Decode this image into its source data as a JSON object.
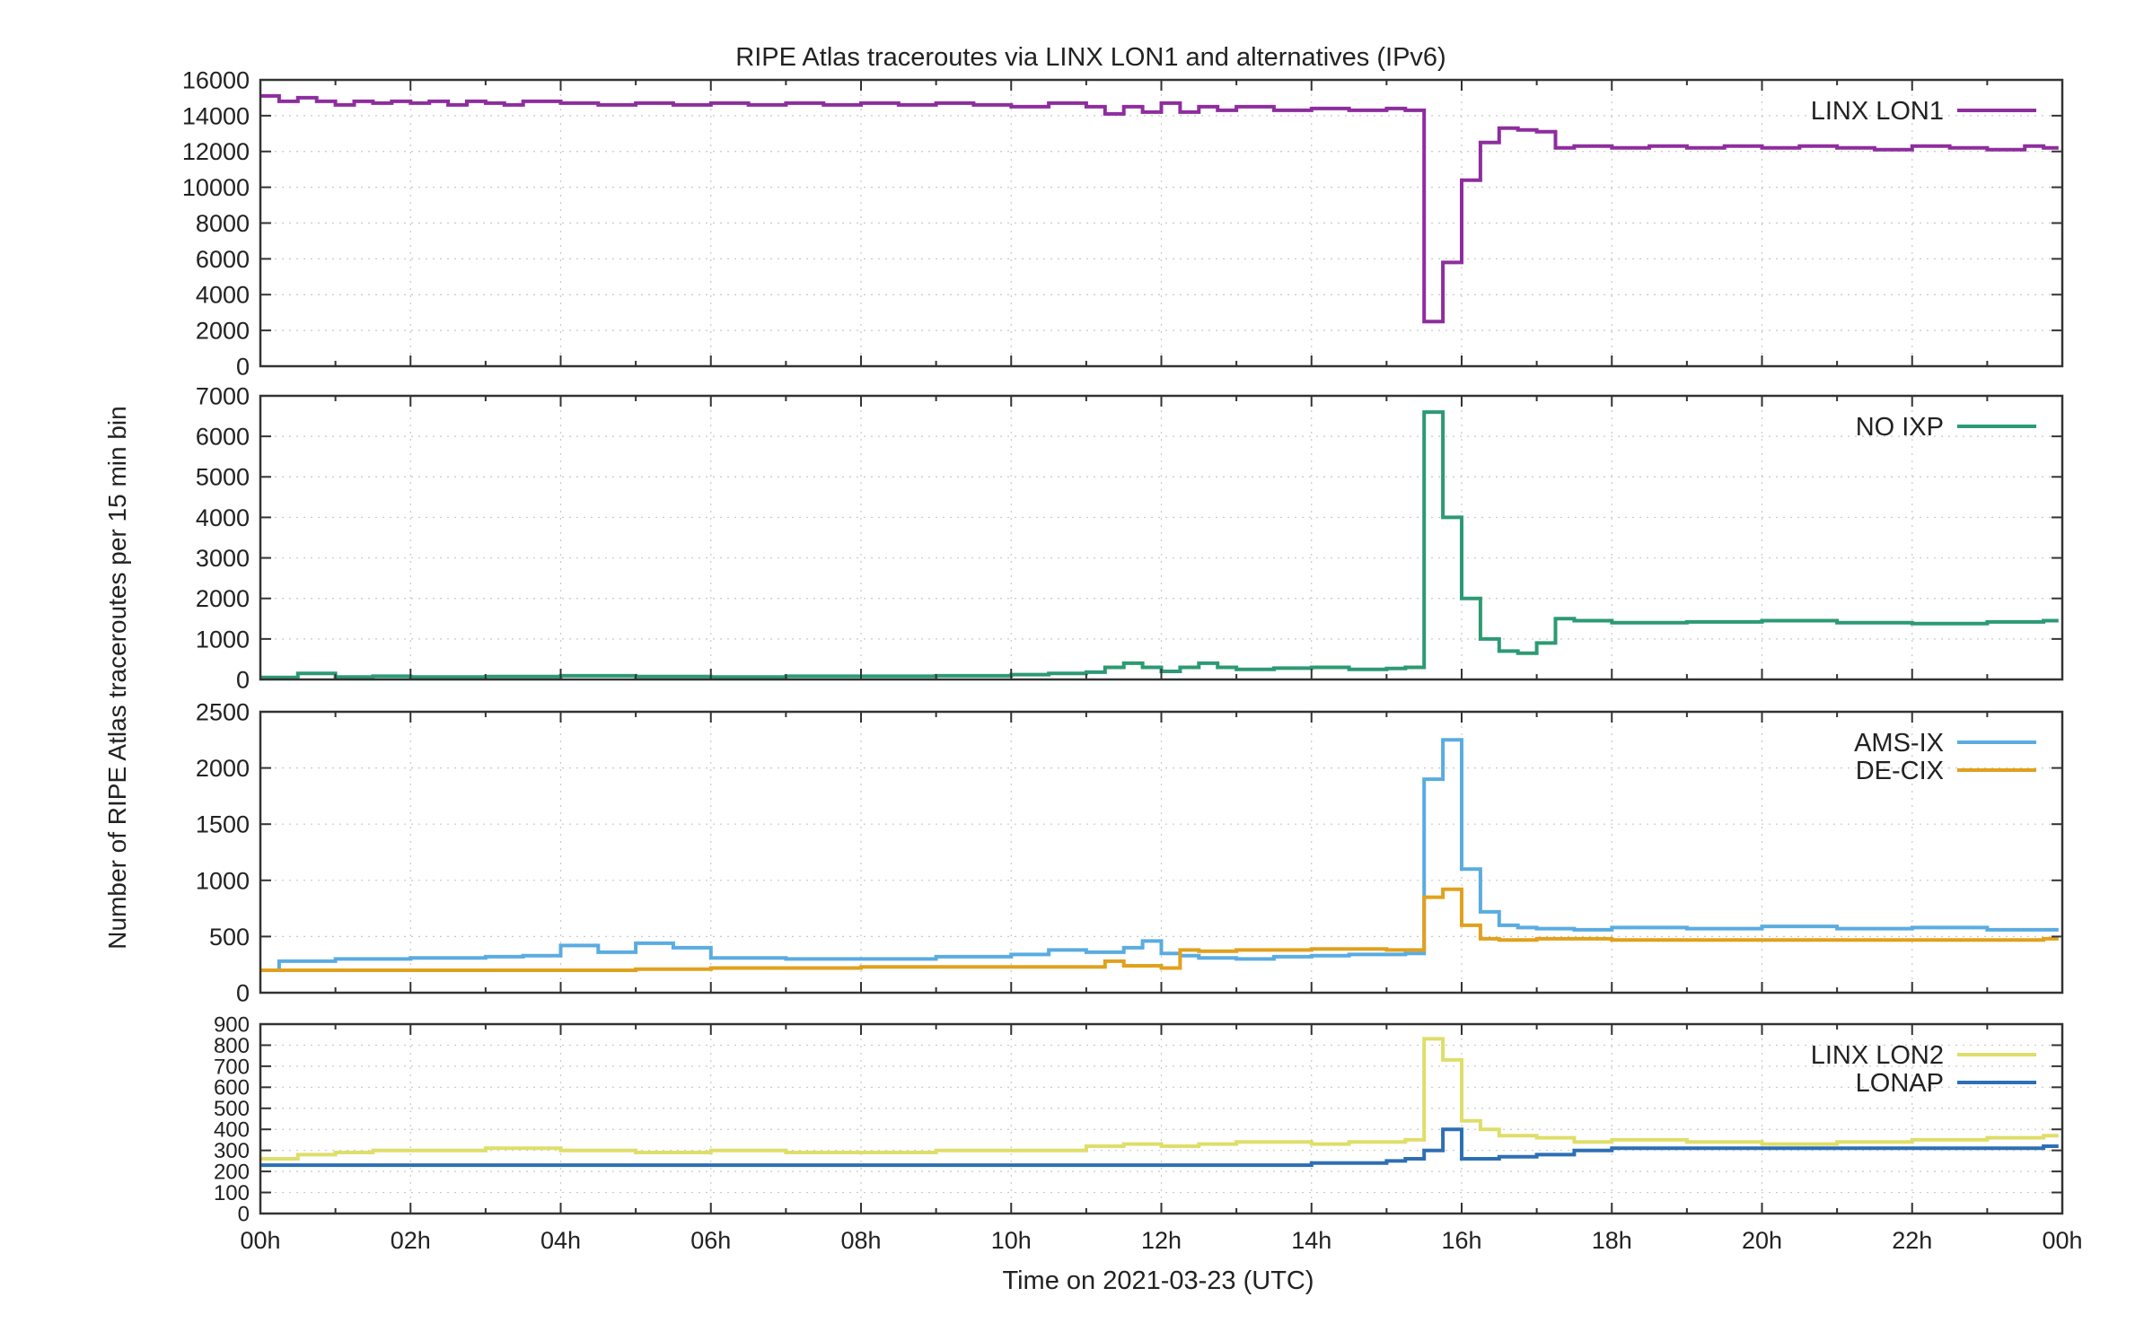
{
  "chart_data": {
    "type": "line",
    "title": "RIPE Atlas traceroutes via LINX LON1 and alternatives (IPv6)",
    "ylabel": "Number of RIPE Atlas traceroutes per 15 min bin",
    "xlabel": "Time on 2021-03-23 (UTC)",
    "x_ticks": [
      "00h",
      "02h",
      "04h",
      "06h",
      "08h",
      "10h",
      "12h",
      "14h",
      "16h",
      "18h",
      "20h",
      "22h",
      "00h"
    ],
    "xlim_hours": [
      0,
      24
    ],
    "line_shape": "step",
    "grid": true,
    "legend_position": "top-right",
    "panels": [
      {
        "ylim": [
          0,
          16000
        ],
        "yticks": [
          0,
          2000,
          4000,
          6000,
          8000,
          10000,
          12000,
          14000,
          16000
        ],
        "series": [
          {
            "name": "LINX LON1",
            "color": "#8e2d9e",
            "x": [
              0,
              0.25,
              0.5,
              0.75,
              1,
              1.25,
              1.5,
              1.75,
              2,
              2.25,
              2.5,
              2.75,
              3,
              3.25,
              3.5,
              4,
              4.5,
              5,
              5.5,
              6,
              6.5,
              7,
              7.5,
              8,
              8.5,
              9,
              9.5,
              10,
              10.5,
              11,
              11.25,
              11.5,
              11.75,
              12,
              12.25,
              12.5,
              12.75,
              13,
              13.5,
              14,
              14.5,
              15,
              15.25,
              15.5,
              15.75,
              16,
              16.25,
              16.5,
              16.75,
              17,
              17.25,
              17.5,
              18,
              18.5,
              19,
              19.5,
              20,
              20.5,
              21,
              21.5,
              22,
              22.5,
              23,
              23.5,
              23.75
            ],
            "y": [
              15100,
              14800,
              15000,
              14800,
              14600,
              14800,
              14700,
              14800,
              14700,
              14800,
              14600,
              14800,
              14700,
              14600,
              14800,
              14700,
              14600,
              14700,
              14600,
              14700,
              14600,
              14700,
              14600,
              14700,
              14600,
              14700,
              14600,
              14500,
              14700,
              14500,
              14100,
              14500,
              14200,
              14700,
              14200,
              14500,
              14300,
              14500,
              14300,
              14400,
              14300,
              14400,
              14300,
              2500,
              5800,
              10400,
              12500,
              13300,
              13200,
              13100,
              12200,
              12300,
              12200,
              12300,
              12200,
              12300,
              12200,
              12300,
              12200,
              12100,
              12300,
              12200,
              12100,
              12300,
              12200
            ]
          }
        ]
      },
      {
        "ylim": [
          0,
          7000
        ],
        "yticks": [
          0,
          1000,
          2000,
          3000,
          4000,
          5000,
          6000,
          7000
        ],
        "series": [
          {
            "name": "NO IXP",
            "color": "#2c9a72",
            "x": [
              0,
              0.5,
              1,
              1.5,
              2,
              3,
              4,
              5,
              6,
              7,
              8,
              9,
              10,
              10.5,
              11,
              11.25,
              11.5,
              11.75,
              12,
              12.25,
              12.5,
              12.75,
              13,
              13.5,
              14,
              14.5,
              15,
              15.25,
              15.5,
              15.75,
              16,
              16.25,
              16.5,
              16.75,
              17,
              17.25,
              17.5,
              18,
              19,
              20,
              21,
              22,
              23,
              23.75
            ],
            "y": [
              50,
              150,
              60,
              80,
              60,
              70,
              90,
              70,
              60,
              80,
              80,
              90,
              120,
              150,
              180,
              300,
              400,
              300,
              200,
              300,
              400,
              300,
              250,
              280,
              300,
              250,
              270,
              300,
              6600,
              4000,
              2000,
              1000,
              700,
              650,
              900,
              1500,
              1450,
              1400,
              1420,
              1450,
              1400,
              1380,
              1420,
              1450
            ]
          }
        ]
      },
      {
        "ylim": [
          0,
          2500
        ],
        "yticks": [
          0,
          500,
          1000,
          1500,
          2000,
          2500
        ],
        "series": [
          {
            "name": "AMS-IX",
            "color": "#5aace0",
            "x": [
              0,
              0.25,
              1,
              2,
              3,
              3.5,
              4,
              4.5,
              5,
              5.5,
              6,
              7,
              8,
              9,
              10,
              10.5,
              11,
              11.5,
              11.75,
              12,
              12.25,
              12.5,
              13,
              13.5,
              14,
              14.5,
              15,
              15.25,
              15.5,
              15.75,
              16,
              16.25,
              16.5,
              16.75,
              17,
              17.5,
              18,
              19,
              20,
              21,
              22,
              23,
              23.75
            ],
            "y": [
              200,
              280,
              300,
              310,
              320,
              330,
              420,
              360,
              440,
              400,
              310,
              300,
              300,
              320,
              340,
              380,
              360,
              400,
              460,
              350,
              330,
              310,
              300,
              320,
              330,
              340,
              340,
              350,
              1900,
              2250,
              1100,
              720,
              600,
              580,
              570,
              560,
              580,
              570,
              590,
              570,
              580,
              560,
              560
            ]
          },
          {
            "name": "DE-CIX",
            "color": "#e0a11e",
            "x": [
              0,
              1,
              2,
              3,
              4,
              5,
              6,
              7,
              8,
              9,
              10,
              11,
              11.25,
              11.5,
              12,
              12.25,
              12.5,
              13,
              13.5,
              14,
              14.5,
              15,
              15.25,
              15.5,
              15.75,
              16,
              16.25,
              16.5,
              17,
              18,
              19,
              20,
              21,
              22,
              23,
              23.75
            ],
            "y": [
              200,
              200,
              200,
              200,
              200,
              210,
              220,
              220,
              230,
              230,
              230,
              230,
              280,
              240,
              220,
              380,
              370,
              380,
              380,
              390,
              390,
              380,
              380,
              850,
              920,
              600,
              480,
              470,
              480,
              470,
              470,
              470,
              470,
              470,
              470,
              480
            ]
          }
        ]
      },
      {
        "ylim": [
          0,
          900
        ],
        "yticks": [
          0,
          100,
          200,
          300,
          400,
          500,
          600,
          700,
          800,
          900
        ],
        "series": [
          {
            "name": "LINX LON2",
            "color": "#dede6a",
            "x": [
              0,
              0.5,
              1,
              1.5,
              2,
              3,
              4,
              5,
              6,
              7,
              8,
              9,
              10,
              11,
              11.5,
              12,
              12.5,
              13,
              13.5,
              14,
              14.5,
              15,
              15.25,
              15.5,
              15.75,
              16,
              16.25,
              16.5,
              17,
              17.5,
              18,
              19,
              20,
              21,
              22,
              23,
              23.75
            ],
            "y": [
              260,
              280,
              290,
              300,
              300,
              310,
              300,
              290,
              300,
              290,
              290,
              300,
              300,
              320,
              330,
              320,
              330,
              340,
              340,
              330,
              340,
              340,
              350,
              830,
              730,
              440,
              400,
              370,
              360,
              340,
              350,
              340,
              330,
              340,
              350,
              360,
              370
            ]
          },
          {
            "name": "LONAP",
            "color": "#2d6fb4",
            "x": [
              0,
              1,
              2,
              3,
              4,
              5,
              6,
              7,
              8,
              9,
              10,
              11,
              12,
              13,
              14,
              15,
              15.25,
              15.5,
              15.75,
              16,
              16.25,
              16.5,
              17,
              17.5,
              18,
              19,
              20,
              21,
              22,
              23,
              23.75
            ],
            "y": [
              230,
              230,
              230,
              230,
              230,
              230,
              230,
              230,
              230,
              230,
              230,
              230,
              230,
              230,
              240,
              250,
              260,
              300,
              400,
              260,
              260,
              270,
              280,
              300,
              310,
              310,
              310,
              310,
              310,
              310,
              320
            ]
          }
        ]
      }
    ]
  }
}
